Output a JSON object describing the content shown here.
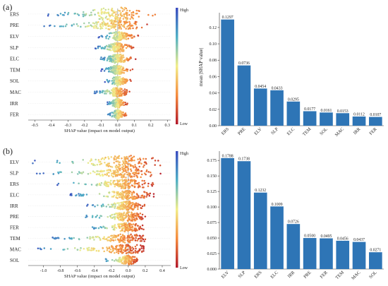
{
  "panels": [
    {
      "label": "(a)",
      "beeswarm": {
        "features": [
          "ERS",
          "PRE",
          "ELV",
          "SLP",
          "ELC",
          "TEM",
          "SOL",
          "MAC",
          "IRR",
          "FER"
        ],
        "spreads": [
          [
            -0.43,
            0.29
          ],
          [
            -0.45,
            0.23
          ],
          [
            -0.12,
            0.13
          ],
          [
            -0.14,
            0.1
          ],
          [
            -0.11,
            0.11
          ],
          [
            -0.1,
            0.1
          ],
          [
            -0.08,
            0.09
          ],
          [
            -0.14,
            0.08
          ],
          [
            -0.07,
            0.06
          ],
          [
            -0.06,
            0.06
          ]
        ],
        "xticks": [
          -0.5,
          -0.4,
          -0.3,
          -0.2,
          -0.1,
          0.0,
          0.1,
          0.2,
          0.3
        ],
        "xtick_labels": [
          "-0.5",
          "-0.4",
          "-0.3",
          "-0.2",
          "-0.1",
          "0.0",
          "0.1",
          "0.2",
          "0.3"
        ],
        "xlim": [
          -0.54,
          0.32
        ],
        "xlabel": "SHAP value (impact on model output)",
        "colorbar_high": "High",
        "colorbar_low": "Low"
      },
      "bar": {
        "type": "bar",
        "categories": [
          "ERS",
          "PRE",
          "ELV",
          "SLP",
          "ELC",
          "TEM",
          "SOL",
          "MAC",
          "IRR",
          "FER"
        ],
        "values": [
          0.1297,
          0.0736,
          0.0454,
          0.0433,
          0.0295,
          0.0177,
          0.0161,
          0.0153,
          0.0112,
          0.0107
        ],
        "value_labels": [
          "0.1297",
          "0.0736",
          "0.0454",
          "0.0433",
          "0.0295",
          "0.0177",
          "0.0161",
          "0.0153",
          "0.0112",
          "0.0107"
        ],
        "yticks": [
          0.0,
          0.02,
          0.04,
          0.06,
          0.08,
          0.1,
          0.12
        ],
        "ytick_labels": [
          "0.00",
          "0.02",
          "0.04",
          "0.06",
          "0.08",
          "0.10",
          "0.12"
        ],
        "ylim": [
          0,
          0.138
        ],
        "ylabel": "mean |SHAP value|",
        "color": "#2e75b6"
      }
    },
    {
      "label": "(b)",
      "beeswarm": {
        "features": [
          "ELV",
          "SLP",
          "ERS",
          "ELC",
          "IRR",
          "PRE",
          "FER",
          "TEM",
          "MAC",
          "SOL"
        ],
        "spreads": [
          [
            -1.15,
            0.4
          ],
          [
            -1.1,
            0.38
          ],
          [
            -0.85,
            0.32
          ],
          [
            -0.7,
            0.3
          ],
          [
            -0.5,
            0.22
          ],
          [
            -0.55,
            0.22
          ],
          [
            -0.5,
            0.18
          ],
          [
            -0.9,
            0.2
          ],
          [
            -1.1,
            0.18
          ],
          [
            -0.3,
            0.12
          ]
        ],
        "xticks": [
          -1.0,
          -0.8,
          -0.6,
          -0.4,
          -0.2,
          0.0,
          0.2,
          0.4
        ],
        "xtick_labels": [
          "-1.0",
          "-0.8",
          "-0.6",
          "-0.4",
          "-0.2",
          "0.0",
          "0.2",
          "0.4"
        ],
        "xlim": [
          -1.18,
          0.5
        ],
        "xlabel": "SHAP value (impact on model output)",
        "colorbar_high": "High",
        "colorbar_low": "Low"
      },
      "bar": {
        "type": "bar",
        "categories": [
          "ELV",
          "SLP",
          "ERS",
          "ELC",
          "IRR",
          "PRE",
          "FER",
          "TEM",
          "MAC",
          "SOL"
        ],
        "values": [
          0.1788,
          0.1738,
          0.1232,
          0.1009,
          0.0726,
          0.05,
          0.0495,
          0.0456,
          0.0437,
          0.0271
        ],
        "value_labels": [
          "0.1788",
          "0.1738",
          "0.1232",
          "0.1009",
          "0.0726",
          "0.0500",
          "0.0495",
          "0.0456",
          "0.0437",
          "0.0271"
        ],
        "yticks": [
          0.0,
          0.025,
          0.05,
          0.075,
          0.1,
          0.125,
          0.15,
          0.175
        ],
        "ytick_labels": [
          "0.000",
          "0.025",
          "0.050",
          "0.075",
          "0.100",
          "0.125",
          "0.150",
          "0.175"
        ],
        "ylim": [
          0,
          0.19
        ],
        "ylabel": "",
        "color": "#2e75b6"
      }
    }
  ],
  "chart_data": [
    {
      "type": "scatter",
      "categories": [
        "ERS",
        "PRE",
        "ELV",
        "SLP",
        "ELC",
        "TEM",
        "SOL",
        "MAC",
        "IRR",
        "FER"
      ],
      "xlabel": "SHAP value (impact on model output)",
      "xlim": [
        -0.54,
        0.32
      ]
    },
    {
      "type": "bar",
      "categories": [
        "ERS",
        "PRE",
        "ELV",
        "SLP",
        "ELC",
        "TEM",
        "SOL",
        "MAC",
        "IRR",
        "FER"
      ],
      "values": [
        0.1297,
        0.0736,
        0.0454,
        0.0433,
        0.0295,
        0.0177,
        0.0161,
        0.0153,
        0.0112,
        0.0107
      ],
      "ylabel": "mean |SHAP value|",
      "ylim": [
        0,
        0.138
      ]
    },
    {
      "type": "scatter",
      "categories": [
        "ELV",
        "SLP",
        "ERS",
        "ELC",
        "IRR",
        "PRE",
        "FER",
        "TEM",
        "MAC",
        "SOL"
      ],
      "xlabel": "SHAP value (impact on model output)",
      "xlim": [
        -1.18,
        0.5
      ]
    },
    {
      "type": "bar",
      "categories": [
        "ELV",
        "SLP",
        "ERS",
        "ELC",
        "IRR",
        "PRE",
        "FER",
        "TEM",
        "MAC",
        "SOL"
      ],
      "values": [
        0.1788,
        0.1738,
        0.1232,
        0.1009,
        0.0726,
        0.05,
        0.0495,
        0.0456,
        0.0437,
        0.0271
      ],
      "ylim": [
        0,
        0.19
      ]
    }
  ]
}
